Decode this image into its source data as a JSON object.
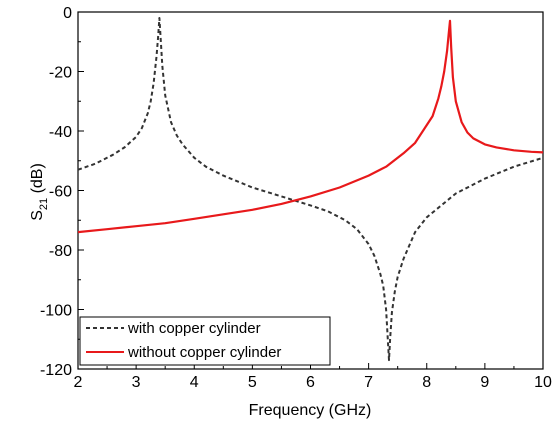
{
  "chart_data": {
    "type": "line",
    "title": "",
    "xlabel": "Frequency (GHz)",
    "ylabel": {
      "main": "S",
      "sub": "21",
      "unit": " (dB)"
    },
    "xlim": [
      2,
      10
    ],
    "ylim": [
      -120,
      0
    ],
    "xticks": [
      "2",
      "3",
      "4",
      "5",
      "6",
      "7",
      "8",
      "9",
      "10"
    ],
    "yticks": [
      "0",
      "-20",
      "-40",
      "-60",
      "-80",
      "-100",
      "-120"
    ],
    "grid": false,
    "legend_position": "bottom-left",
    "series": [
      {
        "name": "with copper cylinder",
        "color": "#333333",
        "style": "dashed",
        "x": [
          2.0,
          2.3,
          2.6,
          2.8,
          3.0,
          3.1,
          3.2,
          3.25,
          3.3,
          3.35,
          3.38,
          3.4,
          3.42,
          3.45,
          3.5,
          3.6,
          3.7,
          3.8,
          4.0,
          4.2,
          4.5,
          5.0,
          5.5,
          6.0,
          6.3,
          6.6,
          6.8,
          7.0,
          7.1,
          7.2,
          7.25,
          7.3,
          7.33,
          7.35,
          7.37,
          7.4,
          7.45,
          7.5,
          7.6,
          7.8,
          8.0,
          8.5,
          9.0,
          9.5,
          10.0
        ],
        "values": [
          -53,
          -51,
          -48,
          -45.5,
          -42,
          -39,
          -34,
          -30,
          -24,
          -15,
          -8,
          -2,
          -8,
          -18,
          -28,
          -37,
          -41.5,
          -44.5,
          -49,
          -52,
          -55,
          -59,
          -62,
          -65,
          -67,
          -70,
          -73,
          -78,
          -82,
          -88,
          -92,
          -100,
          -110,
          -117,
          -110,
          -101,
          -94,
          -89,
          -83,
          -74,
          -69,
          -61,
          -56,
          -52,
          -49
        ]
      },
      {
        "name": "without copper cylinder",
        "color": "#e8191b",
        "style": "solid",
        "x": [
          2.0,
          2.5,
          3.0,
          3.5,
          4.0,
          4.5,
          5.0,
          5.5,
          6.0,
          6.5,
          7.0,
          7.3,
          7.6,
          7.8,
          8.0,
          8.1,
          8.2,
          8.25,
          8.3,
          8.35,
          8.38,
          8.4,
          8.42,
          8.45,
          8.5,
          8.6,
          8.7,
          8.8,
          9.0,
          9.2,
          9.5,
          9.8,
          10.0
        ],
        "values": [
          -74,
          -73,
          -72,
          -71,
          -69.5,
          -68,
          -66.5,
          -64.5,
          -62,
          -59,
          -55,
          -52,
          -47.5,
          -44,
          -38,
          -35,
          -29,
          -25,
          -20,
          -13,
          -7,
          -3,
          -12,
          -22,
          -30,
          -37,
          -40.5,
          -42.5,
          -44.5,
          -45.5,
          -46.5,
          -47,
          -47.2
        ]
      }
    ]
  }
}
